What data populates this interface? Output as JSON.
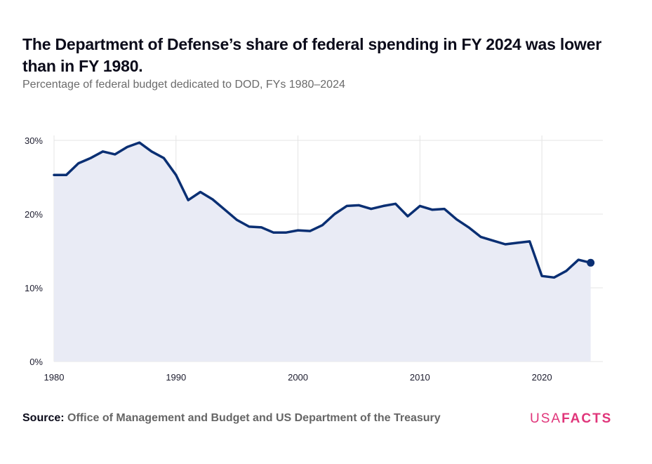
{
  "header": {
    "title": "The Department of Defense’s share of federal spending in FY 2024 was lower than in FY 1980.",
    "subtitle": "Percentage of federal budget dedicated to DOD, FYs 1980–2024"
  },
  "footer": {
    "source_label": "Source:",
    "source_text": "Office of Management and Budget and US Department of the Treasury"
  },
  "brand": {
    "usa": "USA",
    "facts": "FACTS"
  },
  "colors": {
    "line": "#0a2f73",
    "area": "#e9ebf5",
    "grid": "#e4e4e4",
    "brand": "#e0357a"
  },
  "chart_data": {
    "type": "area",
    "title": "The Department of Defense’s share of federal spending in FY 2024 was lower than in FY 1980.",
    "subtitle": "Percentage of federal budget dedicated to DOD, FYs 1980–2024",
    "xlabel": "",
    "ylabel": "",
    "xlim": [
      1980,
      2025
    ],
    "ylim": [
      0,
      30
    ],
    "x_ticks": [
      1980,
      1990,
      2000,
      2010,
      2020
    ],
    "y_ticks": [
      0,
      10,
      20,
      30
    ],
    "y_tick_labels": [
      "0%",
      "10%",
      "20%",
      "30%"
    ],
    "grid": true,
    "end_marker": true,
    "x": [
      1980,
      1981,
      1982,
      1983,
      1984,
      1985,
      1986,
      1987,
      1988,
      1989,
      1990,
      1991,
      1992,
      1993,
      1994,
      1995,
      1996,
      1997,
      1998,
      1999,
      2000,
      2001,
      2002,
      2003,
      2004,
      2005,
      2006,
      2007,
      2008,
      2009,
      2010,
      2011,
      2012,
      2013,
      2014,
      2015,
      2016,
      2017,
      2018,
      2019,
      2020,
      2021,
      2022,
      2023,
      2024
    ],
    "values": [
      25.3,
      25.3,
      26.9,
      27.6,
      28.5,
      28.1,
      29.1,
      29.7,
      28.5,
      27.6,
      25.3,
      21.9,
      23.0,
      22.0,
      20.6,
      19.2,
      18.3,
      18.2,
      17.5,
      17.5,
      17.8,
      17.7,
      18.5,
      20.0,
      21.1,
      21.2,
      20.7,
      21.1,
      21.4,
      19.7,
      21.1,
      20.6,
      20.7,
      19.3,
      18.2,
      16.9,
      16.4,
      15.9,
      16.1,
      16.3,
      11.6,
      11.4,
      12.3,
      13.8,
      13.4
    ]
  }
}
